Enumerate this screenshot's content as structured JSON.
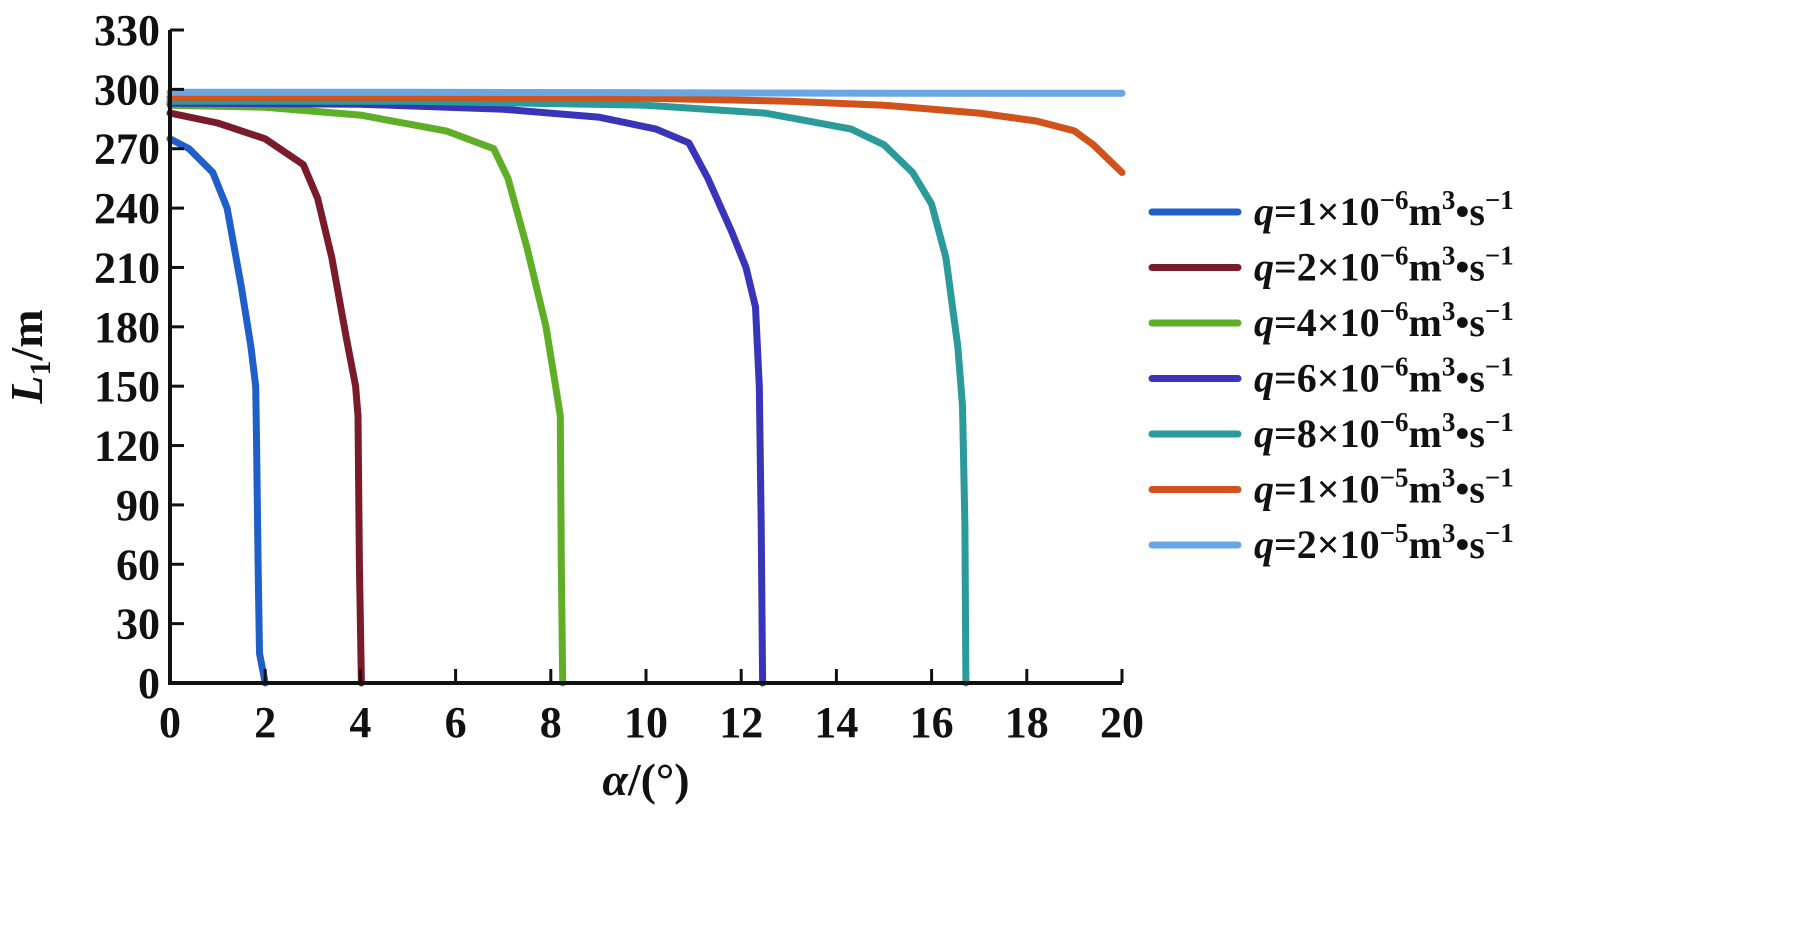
{
  "chart_data": {
    "type": "line",
    "xlabel": {
      "symbol": "α",
      "unit": "/(°)"
    },
    "ylabel": {
      "symbol": "L",
      "subscript": "1",
      "unit": "/m"
    },
    "xlim": [
      0,
      20
    ],
    "ylim": [
      0,
      330
    ],
    "xticks": [
      0,
      2,
      4,
      6,
      8,
      10,
      12,
      14,
      16,
      18,
      20
    ],
    "yticks": [
      0,
      30,
      60,
      90,
      120,
      150,
      180,
      210,
      240,
      270,
      300,
      330
    ],
    "grid": false,
    "legend_position": "right",
    "series": [
      {
        "name": "q=1×10⁻⁶m³•s⁻¹",
        "label": {
          "prefix": "q",
          "coef": "=1×10",
          "exp": "−6",
          "unit": "m",
          "unit_exp": "3",
          "tail": "•s",
          "tail_exp": "−1"
        },
        "color": "#1f5fc8",
        "points": [
          [
            0,
            275
          ],
          [
            0.4,
            270
          ],
          [
            0.9,
            258
          ],
          [
            1.2,
            240
          ],
          [
            1.5,
            200
          ],
          [
            1.7,
            170
          ],
          [
            1.8,
            150
          ],
          [
            1.82,
            120
          ],
          [
            1.85,
            60
          ],
          [
            1.88,
            15
          ],
          [
            2.0,
            0
          ]
        ]
      },
      {
        "name": "q=2×10⁻⁶m³•s⁻¹",
        "label": {
          "prefix": "q",
          "coef": "=2×10",
          "exp": "−6",
          "unit": "m",
          "unit_exp": "3",
          "tail": "•s",
          "tail_exp": "−1"
        },
        "color": "#7a1b2c",
        "points": [
          [
            0,
            288
          ],
          [
            1,
            283
          ],
          [
            2,
            275
          ],
          [
            2.8,
            262
          ],
          [
            3.1,
            245
          ],
          [
            3.4,
            215
          ],
          [
            3.7,
            175
          ],
          [
            3.9,
            150
          ],
          [
            3.95,
            135
          ],
          [
            3.98,
            60
          ],
          [
            4.02,
            0
          ]
        ]
      },
      {
        "name": "q=4×10⁻⁶m³•s⁻¹",
        "label": {
          "prefix": "q",
          "coef": "=4×10",
          "exp": "−6",
          "unit": "m",
          "unit_exp": "3",
          "tail": "•s",
          "tail_exp": "−1"
        },
        "color": "#5fae28",
        "points": [
          [
            0,
            292
          ],
          [
            2,
            291
          ],
          [
            4,
            287
          ],
          [
            5.8,
            279
          ],
          [
            6.8,
            270
          ],
          [
            7.1,
            255
          ],
          [
            7.5,
            220
          ],
          [
            7.9,
            180
          ],
          [
            8.1,
            150
          ],
          [
            8.2,
            135
          ],
          [
            8.22,
            60
          ],
          [
            8.25,
            0
          ]
        ]
      },
      {
        "name": "q=6×10⁻⁶m³•s⁻¹",
        "label": {
          "prefix": "q",
          "coef": "=6×10",
          "exp": "−6",
          "unit": "m",
          "unit_exp": "3",
          "tail": "•s",
          "tail_exp": "−1"
        },
        "color": "#3a35b8",
        "points": [
          [
            0,
            293
          ],
          [
            4,
            292.5
          ],
          [
            7,
            290
          ],
          [
            9,
            286
          ],
          [
            10.2,
            280
          ],
          [
            10.9,
            273
          ],
          [
            11.3,
            255
          ],
          [
            11.8,
            228
          ],
          [
            12.1,
            210
          ],
          [
            12.3,
            190
          ],
          [
            12.38,
            150
          ],
          [
            12.42,
            80
          ],
          [
            12.45,
            0
          ]
        ]
      },
      {
        "name": "q=8×10⁻⁶m³•s⁻¹",
        "label": {
          "prefix": "q",
          "coef": "=8×10",
          "exp": "−6",
          "unit": "m",
          "unit_exp": "3",
          "tail": "•s",
          "tail_exp": "−1"
        },
        "color": "#2a9a9a",
        "points": [
          [
            0,
            294
          ],
          [
            5,
            294
          ],
          [
            10,
            292
          ],
          [
            12.5,
            288
          ],
          [
            14.3,
            280
          ],
          [
            15.0,
            272
          ],
          [
            15.6,
            258
          ],
          [
            16.0,
            242
          ],
          [
            16.3,
            215
          ],
          [
            16.55,
            170
          ],
          [
            16.65,
            140
          ],
          [
            16.7,
            80
          ],
          [
            16.72,
            0
          ]
        ]
      },
      {
        "name": "q=1×10⁻⁵m³•s⁻¹",
        "label": {
          "prefix": "q",
          "coef": "=1×10",
          "exp": "−5",
          "unit": "m",
          "unit_exp": "3",
          "tail": "•s",
          "tail_exp": "−1"
        },
        "color": "#d2521c",
        "points": [
          [
            0,
            296
          ],
          [
            6,
            296
          ],
          [
            10,
            295.5
          ],
          [
            13,
            294
          ],
          [
            15,
            292
          ],
          [
            17,
            288
          ],
          [
            18.2,
            284
          ],
          [
            19.0,
            279
          ],
          [
            19.4,
            272
          ],
          [
            20,
            258
          ]
        ]
      },
      {
        "name": "q=2×10⁻⁵m³•s⁻¹",
        "label": {
          "prefix": "q",
          "coef": "=2×10",
          "exp": "−5",
          "unit": "m",
          "unit_exp": "3",
          "tail": "•s",
          "tail_exp": "−1"
        },
        "color": "#6aa6e6",
        "points": [
          [
            0,
            298.5
          ],
          [
            5,
            298.5
          ],
          [
            10,
            298.3
          ],
          [
            15,
            298
          ],
          [
            20,
            298
          ]
        ]
      }
    ]
  }
}
